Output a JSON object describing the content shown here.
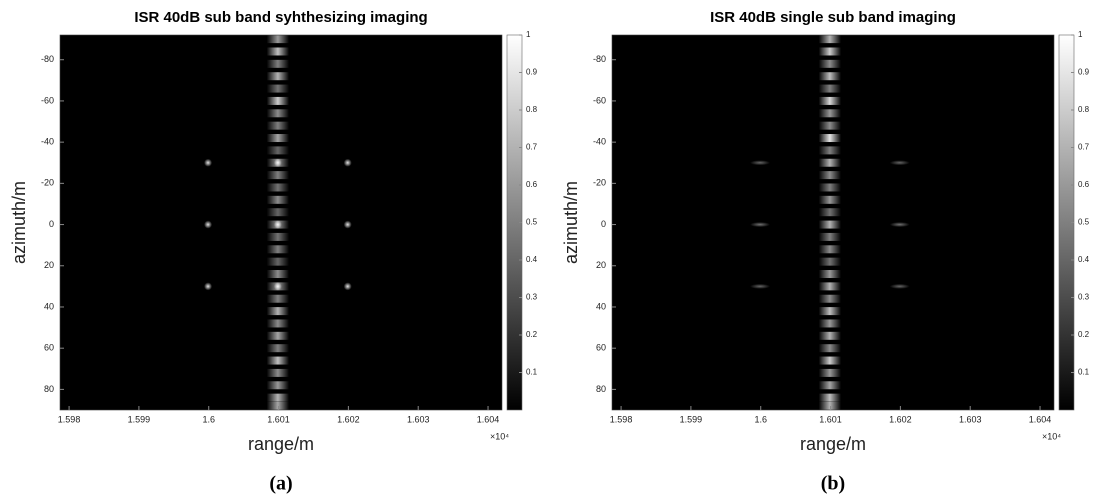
{
  "chart_data": [
    {
      "type": "image",
      "title": "ISR 40dB sub band syhthesizing imaging",
      "xlabel": "range/m",
      "ylabel": "azimuth/m",
      "x_multiplier": "×10⁴",
      "caption": "(a)",
      "xlim": [
        15978.7,
        16042
      ],
      "xticks": [
        {
          "value": 15980,
          "label": "1.598"
        },
        {
          "value": 15990,
          "label": "1.599"
        },
        {
          "value": 16000,
          "label": "1.6"
        },
        {
          "value": 16010,
          "label": "1.601"
        },
        {
          "value": 16020,
          "label": "1.602"
        },
        {
          "value": 16030,
          "label": "1.603"
        },
        {
          "value": 16040,
          "label": "1.604"
        }
      ],
      "ylim": [
        -92,
        90
      ],
      "yticks": [
        -80,
        -60,
        -40,
        -20,
        0,
        20,
        40,
        60,
        80
      ],
      "y_reversed": true,
      "clim": [
        0,
        1
      ],
      "cticks": [
        0.1,
        0.2,
        0.3,
        0.4,
        0.5,
        0.6,
        0.7,
        0.8,
        0.9,
        1
      ],
      "targets": {
        "x": [
          15999.9,
          16009.9,
          16019.9,
          15999.9,
          16009.9,
          16019.9,
          15999.9,
          16009.9,
          16019.9
        ],
        "y": [
          -30,
          -30,
          -30,
          0,
          0,
          0,
          30,
          30,
          30
        ],
        "values": [
          0.9,
          0.95,
          0.9,
          0.9,
          0.95,
          0.9,
          0.9,
          0.95,
          0.9
        ]
      },
      "stripe": {
        "x": 16009.9,
        "halfwidth": 1.6,
        "y": [
          -90,
          -84,
          -78,
          -72,
          -66,
          -60,
          -54,
          -48,
          -42,
          -36,
          -30,
          -24,
          -18,
          -12,
          -6,
          0,
          6,
          12,
          18,
          24,
          30,
          36,
          42,
          48,
          54,
          60,
          66,
          72,
          78,
          84,
          88
        ],
        "values": [
          0.6,
          0.75,
          0.5,
          0.7,
          0.45,
          0.8,
          0.55,
          0.5,
          0.65,
          0.4,
          0.6,
          0.5,
          0.45,
          0.55,
          0.4,
          0.6,
          0.45,
          0.5,
          0.4,
          0.55,
          0.6,
          0.5,
          0.7,
          0.55,
          0.65,
          0.5,
          0.75,
          0.55,
          0.6,
          0.7,
          0.65
        ]
      }
    },
    {
      "type": "image",
      "title": "ISR 40dB single sub band imaging",
      "xlabel": "range/m",
      "ylabel": "azimuth/m",
      "x_multiplier": "×10⁴",
      "caption": "(b)",
      "xlim": [
        15978.7,
        16042
      ],
      "xticks": [
        {
          "value": 15980,
          "label": "1.598"
        },
        {
          "value": 15990,
          "label": "1.599"
        },
        {
          "value": 16000,
          "label": "1.6"
        },
        {
          "value": 16010,
          "label": "1.601"
        },
        {
          "value": 16020,
          "label": "1.602"
        },
        {
          "value": 16030,
          "label": "1.603"
        },
        {
          "value": 16040,
          "label": "1.604"
        }
      ],
      "ylim": [
        -92,
        90
      ],
      "yticks": [
        -80,
        -60,
        -40,
        -20,
        0,
        20,
        40,
        60,
        80
      ],
      "y_reversed": true,
      "clim": [
        0,
        1
      ],
      "cticks": [
        0.1,
        0.2,
        0.3,
        0.4,
        0.5,
        0.6,
        0.7,
        0.8,
        0.9,
        1
      ],
      "targets": {
        "x": [
          15999.9,
          16019.9,
          15999.9,
          16019.9,
          15999.9,
          16019.9
        ],
        "y": [
          -30,
          -30,
          0,
          0,
          30,
          30
        ],
        "values": [
          0.4,
          0.4,
          0.45,
          0.45,
          0.4,
          0.4
        ]
      },
      "stripe": {
        "x": 16009.9,
        "halfwidth": 1.6,
        "y": [
          -90,
          -84,
          -78,
          -72,
          -66,
          -60,
          -54,
          -48,
          -42,
          -36,
          -30,
          -24,
          -18,
          -12,
          -6,
          0,
          6,
          12,
          18,
          24,
          30,
          36,
          42,
          48,
          54,
          60,
          66,
          72,
          78,
          84,
          88
        ],
        "values": [
          0.7,
          0.8,
          0.55,
          0.75,
          0.5,
          0.85,
          0.6,
          0.55,
          0.9,
          0.5,
          0.7,
          0.55,
          0.5,
          0.6,
          0.45,
          0.7,
          0.5,
          0.55,
          0.45,
          0.6,
          0.7,
          0.55,
          0.75,
          0.6,
          0.7,
          0.55,
          0.8,
          0.6,
          0.65,
          0.75,
          0.7
        ]
      }
    }
  ]
}
